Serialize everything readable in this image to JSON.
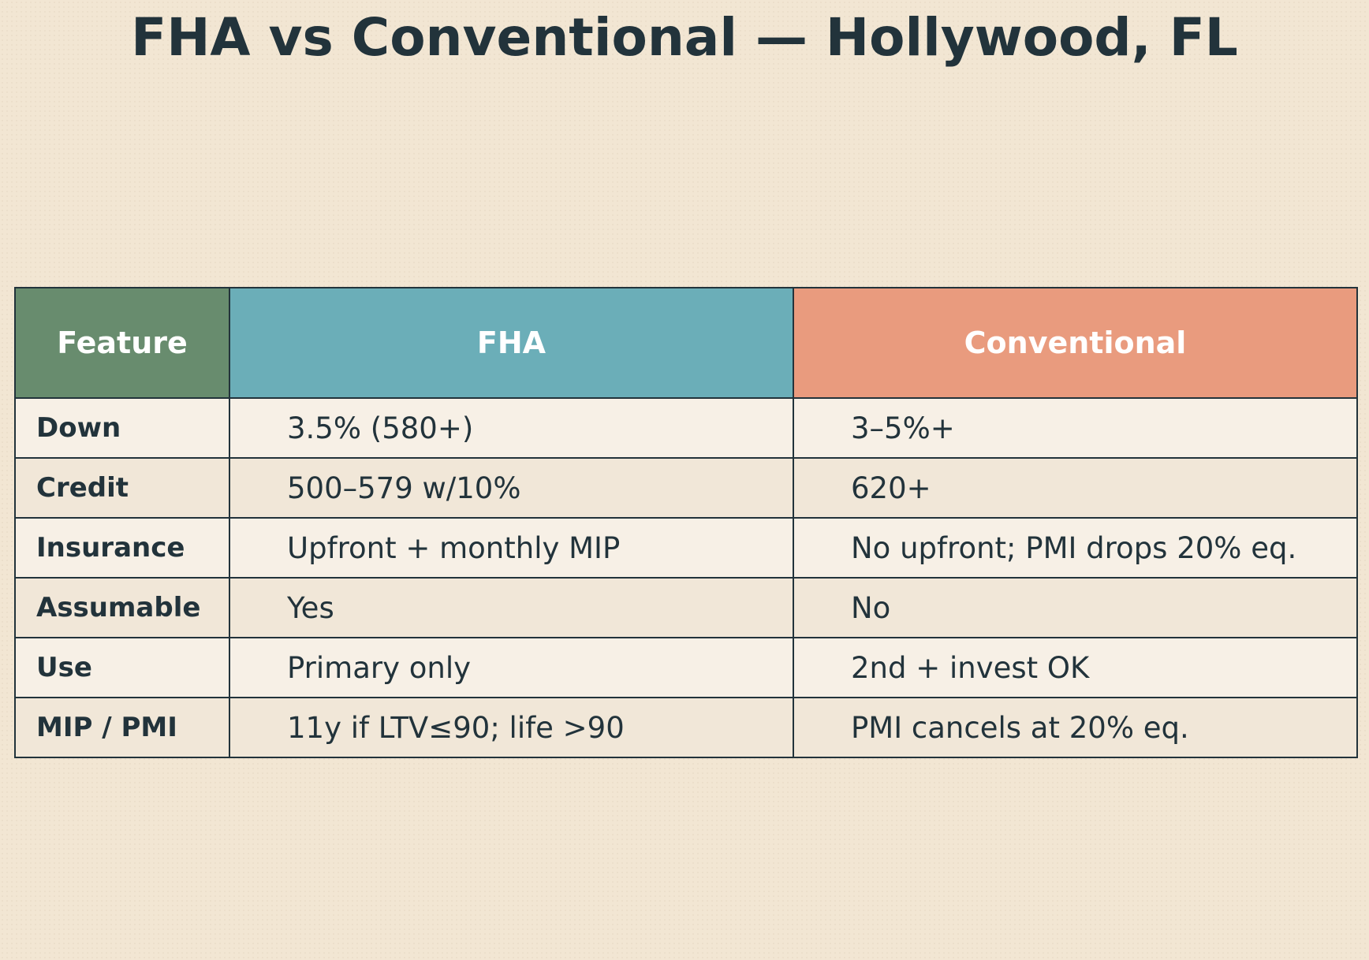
{
  "title": "FHA vs Conventional — Hollywood, FL",
  "table": {
    "headers": {
      "feature": "Feature",
      "fha": "FHA",
      "conventional": "Conventional"
    },
    "header_colors": {
      "feature": "#688c6e",
      "fha": "#6baeb8",
      "conventional": "#e99b7e"
    },
    "rows": [
      {
        "feature": "Down",
        "fha": "3.5% (580+)",
        "conventional": "3–5%+"
      },
      {
        "feature": "Credit",
        "fha": "500–579 w/10%",
        "conventional": "620+"
      },
      {
        "feature": "Insurance",
        "fha": "Upfront + monthly MIP",
        "conventional": "No upfront; PMI drops 20% eq."
      },
      {
        "feature": "Assumable",
        "fha": "Yes",
        "conventional": "No"
      },
      {
        "feature": "Use",
        "fha": "Primary only",
        "conventional": "2nd + invest OK"
      },
      {
        "feature": "MIP / PMI",
        "fha": "11y if LTV≤90; life >90",
        "conventional": "PMI cancels at 20% eq."
      }
    ]
  }
}
